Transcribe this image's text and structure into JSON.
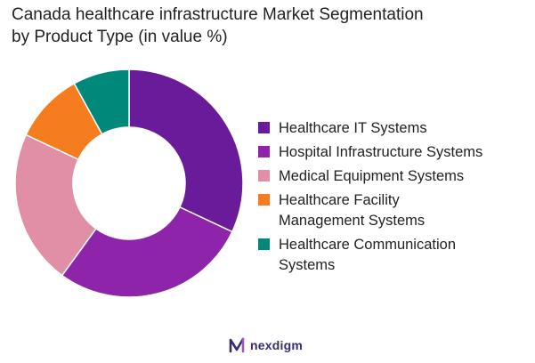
{
  "chart_data": {
    "type": "pie",
    "donut": true,
    "title_lines": [
      "Canada healthcare infrastructure Market Segmentation",
      "by Product Type (in value %)"
    ],
    "categories": [
      "Healthcare IT Systems",
      "Hospital Infrastructure Systems",
      "Medical Equipment Systems",
      "Healthcare Facility Management Systems",
      "Healthcare Communication Systems"
    ],
    "legend_lines": [
      [
        "Healthcare IT Systems"
      ],
      [
        "Hospital Infrastructure Systems"
      ],
      [
        "Medical Equipment Systems"
      ],
      [
        "Healthcare Facility",
        "Management Systems"
      ],
      [
        "Healthcare Communication",
        "Systems"
      ]
    ],
    "values": [
      32,
      28,
      22,
      10,
      8
    ],
    "colors": [
      "#6a1b9a",
      "#8e24aa",
      "#e08fa6",
      "#f57c1f",
      "#00897b"
    ],
    "legend_position": "right"
  },
  "brand": {
    "name": "nexdigm",
    "color": "#3a2d6e"
  }
}
